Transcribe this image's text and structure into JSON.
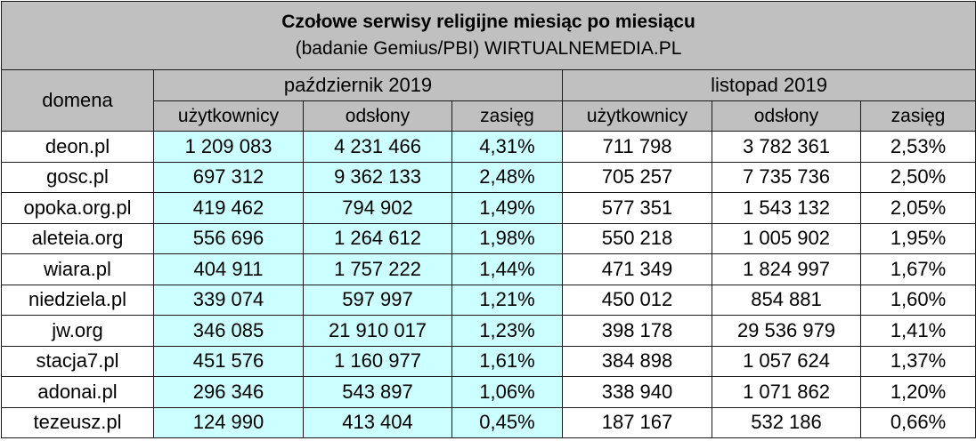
{
  "title": {
    "main": "Czołowe serwisy religijne miesiąc po miesiącu",
    "sub": "(badanie Gemius/PBI) WIRTUALNEMEDIA.PL"
  },
  "headers": {
    "domain": "domena",
    "month1": "październik 2019",
    "month2": "listopad 2019",
    "users": "użytkownicy",
    "views": "odsłony",
    "reach": "zasięg"
  },
  "rows": [
    {
      "domain": "deon.pl",
      "oct": {
        "users": "1 209 083",
        "views": "4 231 466",
        "reach": "4,31%"
      },
      "nov": {
        "users": "711 798",
        "views": "3 782 361",
        "reach": "2,53%"
      }
    },
    {
      "domain": "gosc.pl",
      "oct": {
        "users": "697 312",
        "views": "9 362 133",
        "reach": "2,48%"
      },
      "nov": {
        "users": "705 257",
        "views": "7 735 736",
        "reach": "2,50%"
      }
    },
    {
      "domain": "opoka.org.pl",
      "oct": {
        "users": "419 462",
        "views": "794 902",
        "reach": "1,49%"
      },
      "nov": {
        "users": "577 351",
        "views": "1 543 132",
        "reach": "2,05%"
      }
    },
    {
      "domain": "aleteia.org",
      "oct": {
        "users": "556 696",
        "views": "1 264 612",
        "reach": "1,98%"
      },
      "nov": {
        "users": "550 218",
        "views": "1 005 902",
        "reach": "1,95%"
      }
    },
    {
      "domain": "wiara.pl",
      "oct": {
        "users": "404 911",
        "views": "1 757 222",
        "reach": "1,44%"
      },
      "nov": {
        "users": "471 349",
        "views": "1 824 997",
        "reach": "1,67%"
      }
    },
    {
      "domain": "niedziela.pl",
      "oct": {
        "users": "339 074",
        "views": "597 997",
        "reach": "1,21%"
      },
      "nov": {
        "users": "450 012",
        "views": "854 881",
        "reach": "1,60%"
      }
    },
    {
      "domain": "jw.org",
      "oct": {
        "users": "346 085",
        "views": "21 910 017",
        "reach": "1,23%"
      },
      "nov": {
        "users": "398 178",
        "views": "29 536 979",
        "reach": "1,41%"
      }
    },
    {
      "domain": "stacja7.pl",
      "oct": {
        "users": "451 576",
        "views": "1 160 977",
        "reach": "1,61%"
      },
      "nov": {
        "users": "384 898",
        "views": "1 057 624",
        "reach": "1,37%"
      }
    },
    {
      "domain": "adonai.pl",
      "oct": {
        "users": "296 346",
        "views": "543 897",
        "reach": "1,06%"
      },
      "nov": {
        "users": "338 940",
        "views": "1 071 862",
        "reach": "1,20%"
      }
    },
    {
      "domain": "tezeusz.pl",
      "oct": {
        "users": "124 990",
        "views": "413 404",
        "reach": "0,45%"
      },
      "nov": {
        "users": "187 167",
        "views": "532 186",
        "reach": "0,66%"
      }
    }
  ]
}
